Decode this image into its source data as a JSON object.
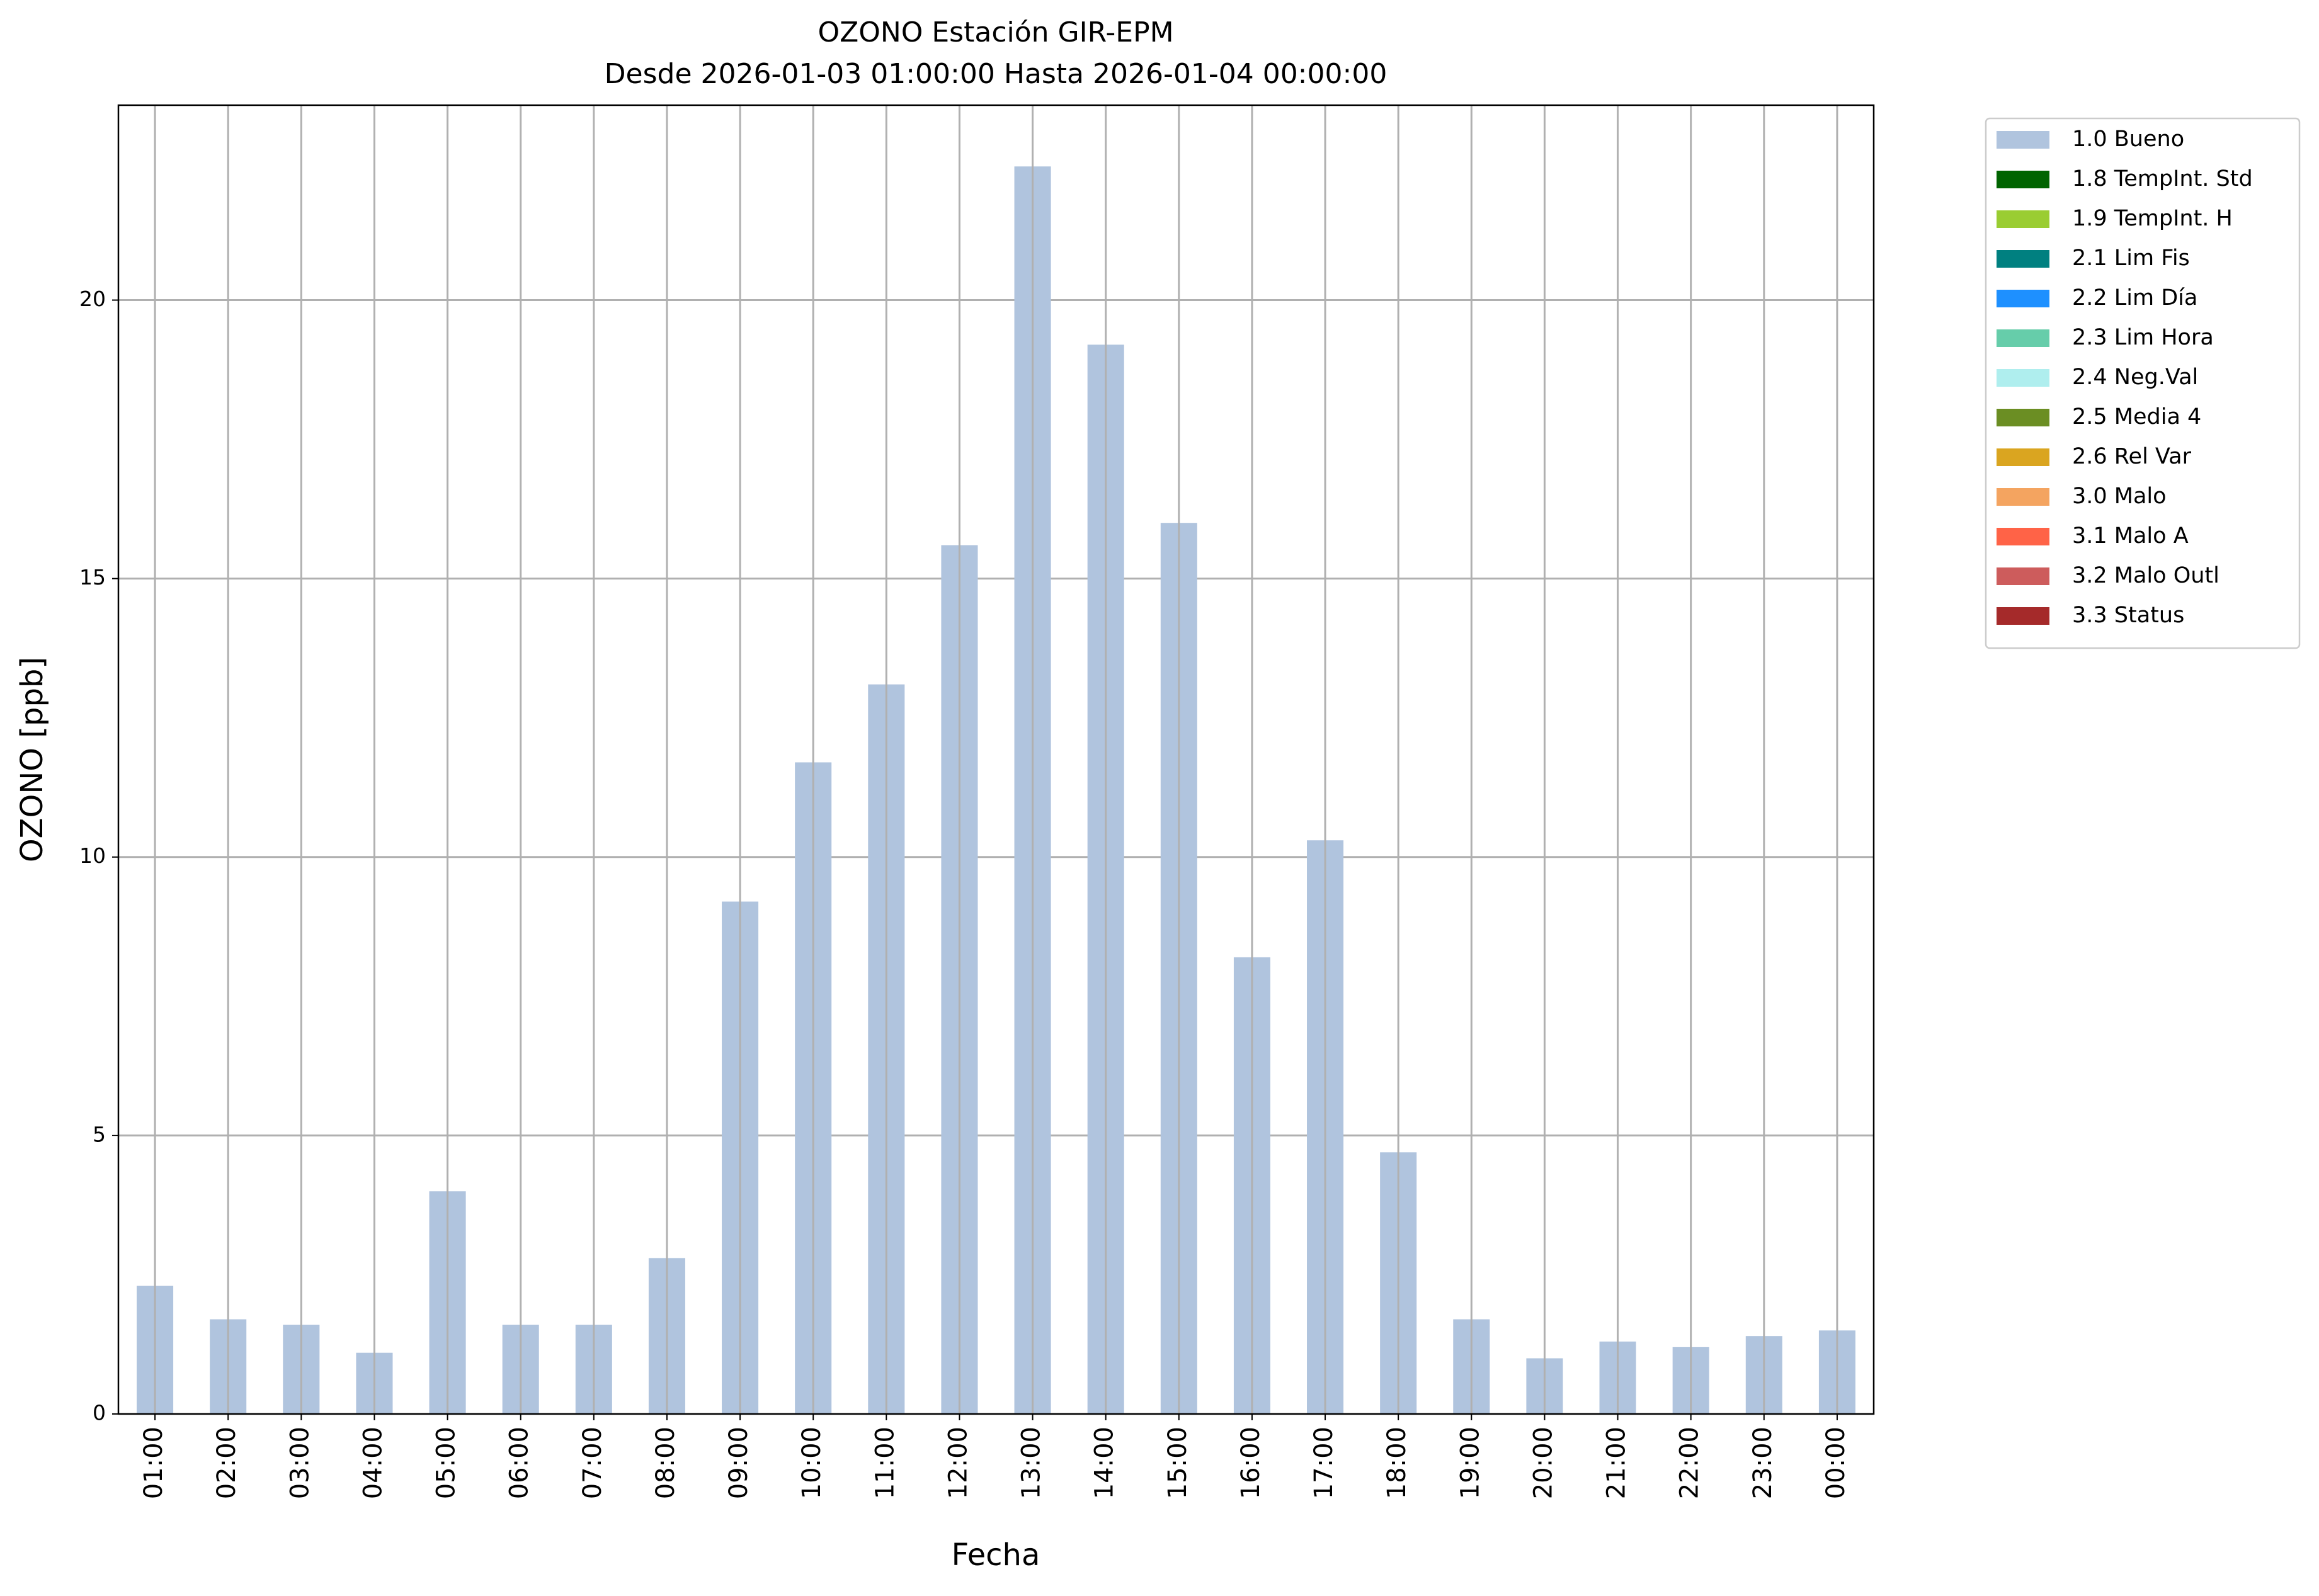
{
  "chart_data": {
    "type": "bar",
    "title": "OZONO Estación GIR-EPM",
    "subtitle": "Desde 2026-01-03 01:00:00 Hasta 2026-01-04 00:00:00",
    "x_label": "Fecha",
    "y_label": "OZONO [ppb]",
    "categories": [
      "01:00",
      "02:00",
      "03:00",
      "04:00",
      "05:00",
      "06:00",
      "07:00",
      "08:00",
      "09:00",
      "10:00",
      "11:00",
      "12:00",
      "13:00",
      "14:00",
      "15:00",
      "16:00",
      "17:00",
      "18:00",
      "19:00",
      "20:00",
      "21:00",
      "22:00",
      "23:00",
      "00:00"
    ],
    "series": [
      {
        "name": "1.0 Bueno",
        "color": "#b0c4de",
        "values": [
          2.3,
          1.7,
          1.6,
          1.1,
          4.0,
          1.6,
          1.6,
          2.8,
          9.2,
          11.7,
          13.1,
          15.6,
          22.4,
          19.2,
          16.0,
          8.2,
          10.3,
          4.7,
          1.7,
          1.0,
          1.3,
          1.2,
          1.4,
          1.5
        ]
      },
      {
        "name": "1.8 TempInt. Std",
        "color": "#006400"
      },
      {
        "name": "1.9 TempInt. H",
        "color": "#9acd32"
      },
      {
        "name": "2.1 Lim Fis",
        "color": "#008080"
      },
      {
        "name": "2.2 Lim Día",
        "color": "#1e90ff"
      },
      {
        "name": "2.3 Lim Hora",
        "color": "#66cdaa"
      },
      {
        "name": "2.4 Neg.Val",
        "color": "#afeeee"
      },
      {
        "name": "2.5 Media 4",
        "color": "#6b8e23"
      },
      {
        "name": "2.6 Rel Var",
        "color": "#daa520"
      },
      {
        "name": "3.0 Malo",
        "color": "#f4a460"
      },
      {
        "name": "3.1 Malo A",
        "color": "#ff6347"
      },
      {
        "name": "3.2 Malo Outl",
        "color": "#cd5c5c"
      },
      {
        "name": "3.3 Status",
        "color": "#a52a2a"
      }
    ],
    "ylim": [
      0,
      23.5
    ],
    "yticks": [
      0,
      5,
      10,
      15,
      20
    ],
    "grid": true,
    "legend": "outside-right"
  }
}
